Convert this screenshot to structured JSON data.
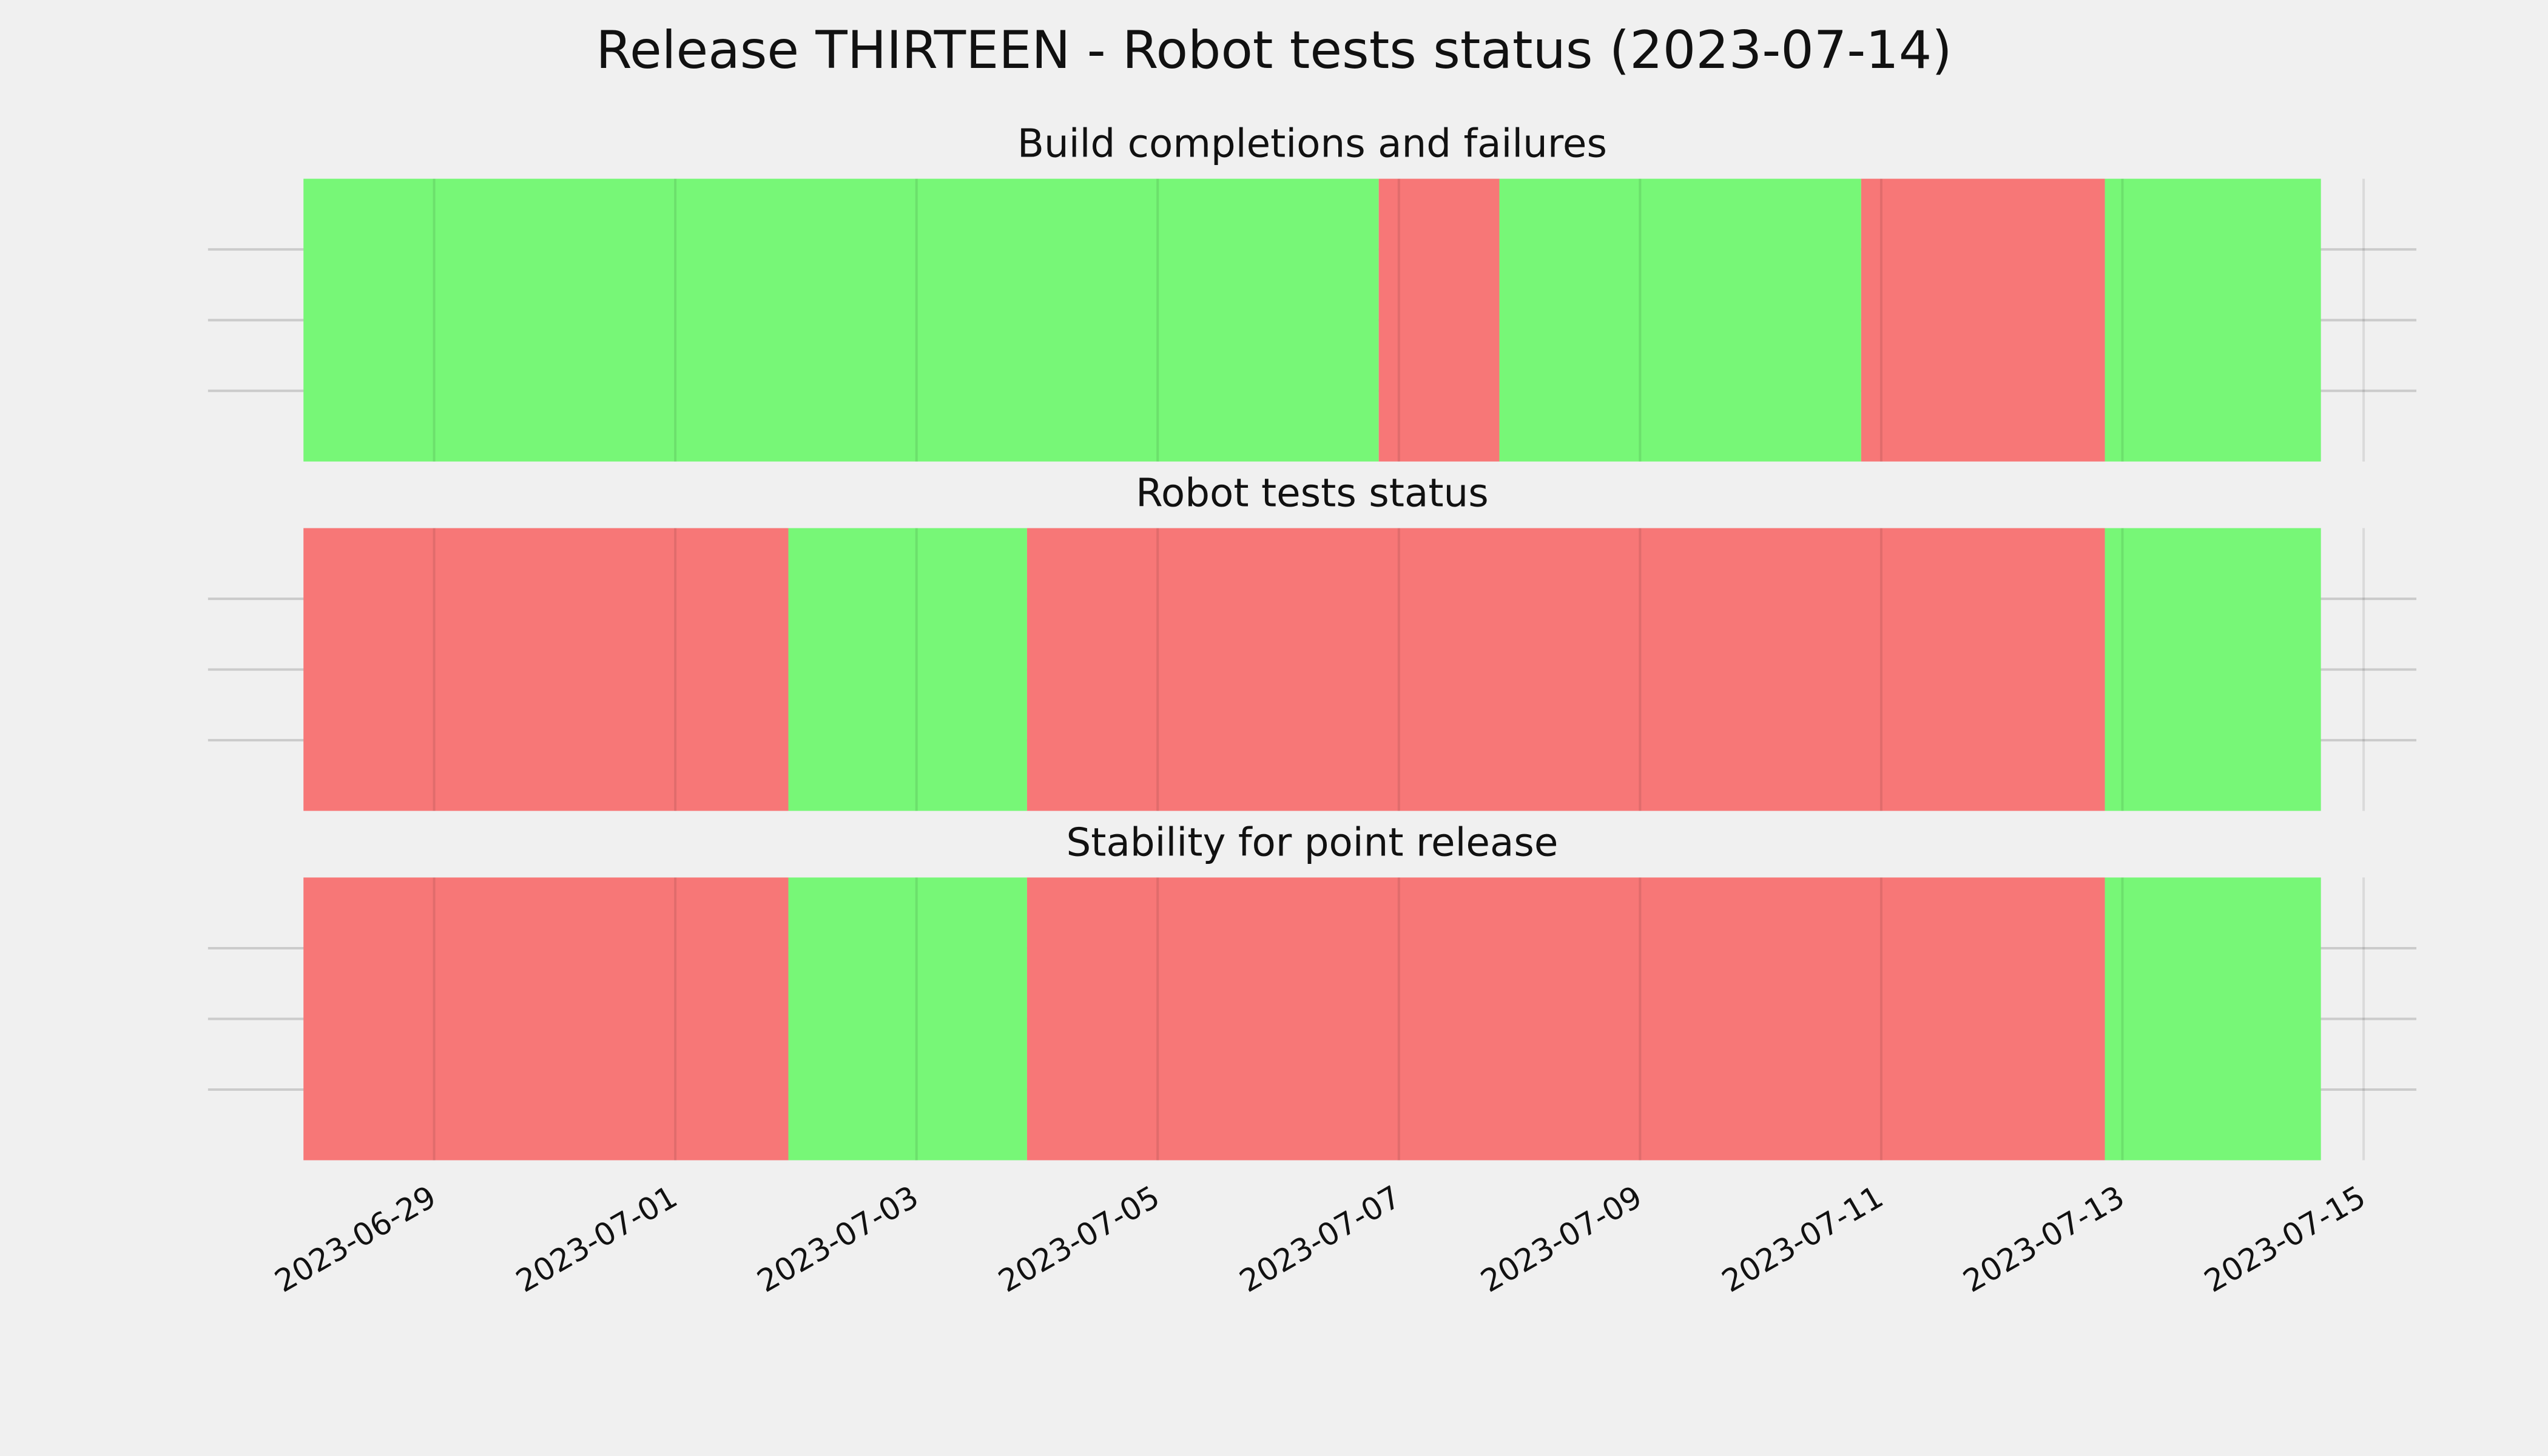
{
  "title": "Release THIRTEEN - Robot tests status (2023-07-14)",
  "chart_data": [
    {
      "type": "timeline",
      "title": "Build completions and failures",
      "segments": [
        {
          "start": "2023-06-27T22:00",
          "end": "2023-07-06T20:00",
          "color": "#77f777"
        },
        {
          "start": "2023-07-06T20:00",
          "end": "2023-07-07T20:00",
          "color": "#f77777"
        },
        {
          "start": "2023-07-07T20:00",
          "end": "2023-07-10T20:00",
          "color": "#77f777"
        },
        {
          "start": "2023-07-10T20:00",
          "end": "2023-07-12T20:30",
          "color": "#f77777"
        },
        {
          "start": "2023-07-12T20:30",
          "end": "2023-07-14T15:30",
          "color": "#77f777"
        }
      ],
      "xlim": [
        "2023-06-27T03:00",
        "2023-07-15T10:30"
      ],
      "xticks": [
        "2023-06-29",
        "2023-07-01",
        "2023-07-03",
        "2023-07-05",
        "2023-07-07",
        "2023-07-09",
        "2023-07-11",
        "2023-07-13",
        "2023-07-15"
      ],
      "ylim": [
        0,
        1
      ],
      "yticks": [
        0.25,
        0.5,
        0.75
      ],
      "grid": true
    },
    {
      "type": "timeline",
      "title": "Robot tests status",
      "segments": [
        {
          "start": "2023-06-27T22:00",
          "end": "2023-07-01T22:30",
          "color": "#f77777"
        },
        {
          "start": "2023-07-01T22:30",
          "end": "2023-07-03T22:00",
          "color": "#77f777"
        },
        {
          "start": "2023-07-03T22:00",
          "end": "2023-07-12T20:30",
          "color": "#f77777"
        },
        {
          "start": "2023-07-12T20:30",
          "end": "2023-07-14T15:30",
          "color": "#77f777"
        }
      ],
      "xlim": [
        "2023-06-27T03:00",
        "2023-07-15T10:30"
      ],
      "xticks": [
        "2023-06-29",
        "2023-07-01",
        "2023-07-03",
        "2023-07-05",
        "2023-07-07",
        "2023-07-09",
        "2023-07-11",
        "2023-07-13",
        "2023-07-15"
      ],
      "ylim": [
        0,
        1
      ],
      "yticks": [
        0.25,
        0.5,
        0.75
      ],
      "grid": true
    },
    {
      "type": "timeline",
      "title": "Stability for point release",
      "segments": [
        {
          "start": "2023-06-27T22:00",
          "end": "2023-07-01T22:30",
          "color": "#f77777"
        },
        {
          "start": "2023-07-01T22:30",
          "end": "2023-07-03T22:00",
          "color": "#77f777"
        },
        {
          "start": "2023-07-03T22:00",
          "end": "2023-07-12T20:30",
          "color": "#f77777"
        },
        {
          "start": "2023-07-12T20:30",
          "end": "2023-07-14T15:30",
          "color": "#77f777"
        }
      ],
      "xlim": [
        "2023-06-27T03:00",
        "2023-07-15T10:30"
      ],
      "xticks": [
        "2023-06-29",
        "2023-07-01",
        "2023-07-03",
        "2023-07-05",
        "2023-07-07",
        "2023-07-09",
        "2023-07-11",
        "2023-07-13",
        "2023-07-15"
      ],
      "ylim": [
        0,
        1
      ],
      "yticks": [
        0.25,
        0.5,
        0.75
      ],
      "grid": true,
      "show_xticklabels": true
    }
  ]
}
